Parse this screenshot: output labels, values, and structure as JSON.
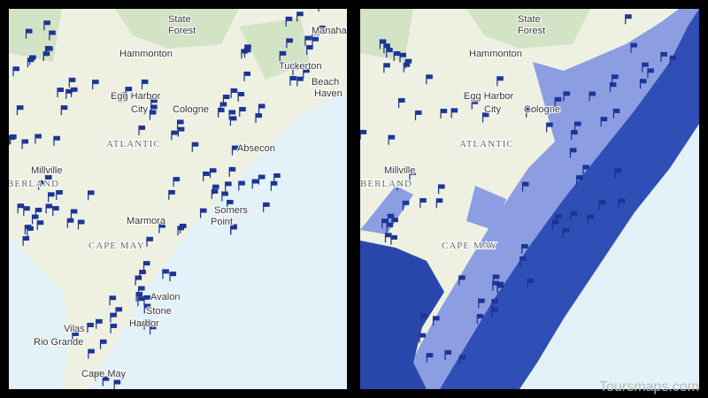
{
  "left_map": {
    "labels": [
      "State",
      "Forest",
      "Hammonton",
      "Tuckerton",
      "Manahawkin",
      "Beach",
      "Haven",
      "Egg Harbor",
      "City",
      "Cologne",
      "ATLANTIC",
      "Absecon",
      "Millville",
      "CUMBERLAND",
      "Somers",
      "Point",
      "Marmora",
      "CAPE MAY",
      "Avalon",
      "Stone",
      "Harbor",
      "Vilas",
      "Rio Grande",
      "Cape May"
    ]
  },
  "right_map": {
    "labels": [
      "State",
      "Forest",
      "Hammonton",
      "Egg Harbor",
      "City",
      "Cologne",
      "ATLANTIC",
      "Millville",
      "CUMBERLAND",
      "CAPE MAY"
    ]
  },
  "watermark": "Toursmaps.com"
}
